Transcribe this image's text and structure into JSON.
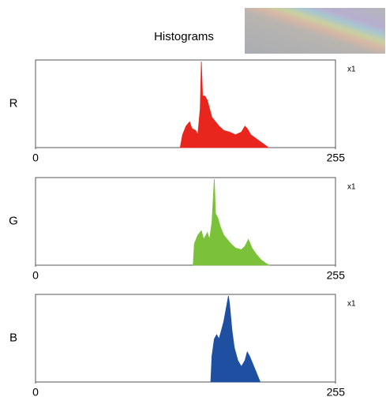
{
  "title": "Histograms",
  "chart_data": [
    {
      "type": "area",
      "channel": "R",
      "annotation": "x1",
      "color": "#e8261d",
      "x": [
        123,
        125,
        128,
        131,
        133,
        136,
        138,
        140,
        141,
        142,
        144,
        146,
        148,
        150,
        153,
        156,
        160,
        165,
        170,
        175,
        178,
        180,
        183,
        186,
        190,
        195,
        198
      ],
      "values": [
        0,
        15,
        25,
        30,
        22,
        20,
        15,
        45,
        100,
        60,
        60,
        55,
        45,
        35,
        30,
        25,
        20,
        18,
        15,
        18,
        25,
        22,
        15,
        12,
        8,
        3,
        0
      ],
      "xlim": [
        0,
        255
      ],
      "xticks": [
        0,
        255
      ],
      "ylim": [
        0,
        100
      ]
    },
    {
      "type": "area",
      "channel": "G",
      "annotation": "x1",
      "color": "#7bc23a",
      "x": [
        134,
        135,
        138,
        141,
        143,
        146,
        148,
        150,
        152,
        153,
        155,
        157,
        160,
        163,
        166,
        170,
        175,
        178,
        181,
        184,
        188,
        192,
        196,
        199
      ],
      "values": [
        0,
        25,
        35,
        40,
        30,
        38,
        30,
        50,
        100,
        60,
        55,
        45,
        35,
        30,
        25,
        20,
        18,
        22,
        30,
        20,
        12,
        6,
        2,
        0
      ],
      "xlim": [
        0,
        255
      ],
      "xticks": [
        0,
        255
      ],
      "ylim": [
        0,
        100
      ]
    },
    {
      "type": "area",
      "channel": "B",
      "annotation": "x1",
      "color": "#1f4fa0",
      "x": [
        149,
        150,
        152,
        154,
        156,
        158,
        160,
        162,
        164,
        165,
        167,
        169,
        172,
        175,
        178,
        180,
        182,
        185,
        188,
        191
      ],
      "values": [
        0,
        30,
        50,
        55,
        50,
        60,
        70,
        85,
        100,
        90,
        60,
        40,
        25,
        18,
        25,
        35,
        30,
        20,
        10,
        0
      ],
      "xlim": [
        0,
        255
      ],
      "xticks": [
        0,
        255
      ],
      "ylim": [
        0,
        100
      ]
    }
  ]
}
